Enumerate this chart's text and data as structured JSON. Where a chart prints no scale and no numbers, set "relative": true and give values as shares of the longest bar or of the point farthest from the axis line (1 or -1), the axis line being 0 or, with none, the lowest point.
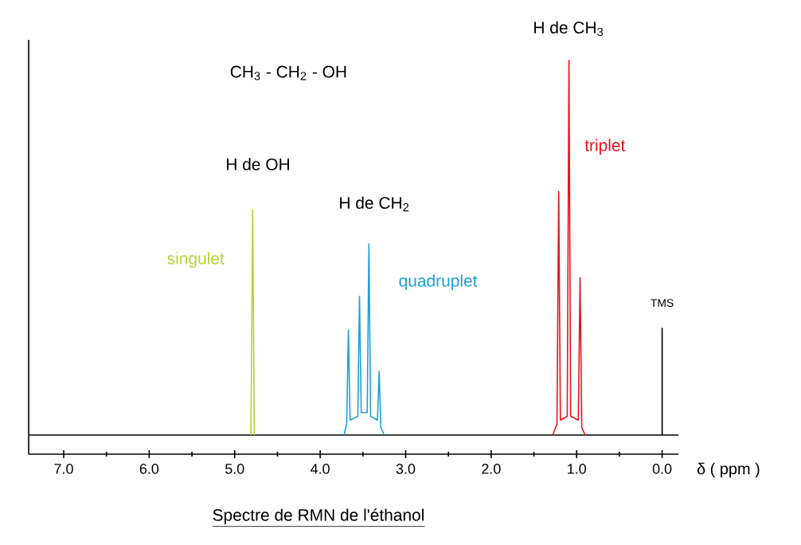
{
  "chart_data": {
    "type": "line",
    "relative": true,
    "title": "Spectre de RMN de l'éthanol",
    "xlabel": "δ  ( ppm )",
    "xlim": [
      7.41,
      -0.19
    ],
    "xticks": [
      {
        "value": 7,
        "label": "7.0"
      },
      {
        "value": 6,
        "label": "6.0"
      },
      {
        "value": 5,
        "label": "5.0"
      },
      {
        "value": 4,
        "label": "4.0"
      },
      {
        "value": 3,
        "label": "3.0"
      },
      {
        "value": 2,
        "label": "2.0"
      },
      {
        "value": 1,
        "label": "1.0"
      },
      {
        "value": 0,
        "label": "0.0"
      }
    ],
    "series": [
      {
        "color": "#000000",
        "x": [
          7.41,
          0.0,
          0.0,
          0.0,
          -0.19
        ],
        "values": [
          0,
          0,
          0.285,
          0,
          0
        ]
      },
      {
        "color": "#b5d334",
        "x": [
          4.81,
          4.79,
          4.77
        ],
        "values": [
          0,
          0.6,
          0
        ]
      },
      {
        "color": "#1ea0dc",
        "x": [
          3.72,
          3.69,
          3.67,
          3.65,
          3.56,
          3.54,
          3.52,
          3.45,
          3.43,
          3.41,
          3.33,
          3.31,
          3.29,
          3.25
        ],
        "values": [
          0,
          0.03,
          0.28,
          0.04,
          0.05,
          0.37,
          0.06,
          0.06,
          0.51,
          0.05,
          0.04,
          0.17,
          0.02,
          0
        ]
      },
      {
        "color": "#e8141e",
        "x": [
          1.28,
          1.23,
          1.21,
          1.19,
          1.11,
          1.09,
          1.07,
          0.98,
          0.96,
          0.94,
          0.9
        ],
        "values": [
          0,
          0.03,
          0.65,
          0.04,
          0.05,
          1.0,
          0.05,
          0.04,
          0.42,
          0.02,
          0
        ]
      }
    ],
    "annotations": [
      "CH$_{3}$ - CH$_{2}$ - OH",
      "H de CH$_{3}$",
      "triplet",
      "H de OH",
      "singulet",
      "H de CH$_{2}$",
      "quadruplet",
      "TMS"
    ]
  }
}
